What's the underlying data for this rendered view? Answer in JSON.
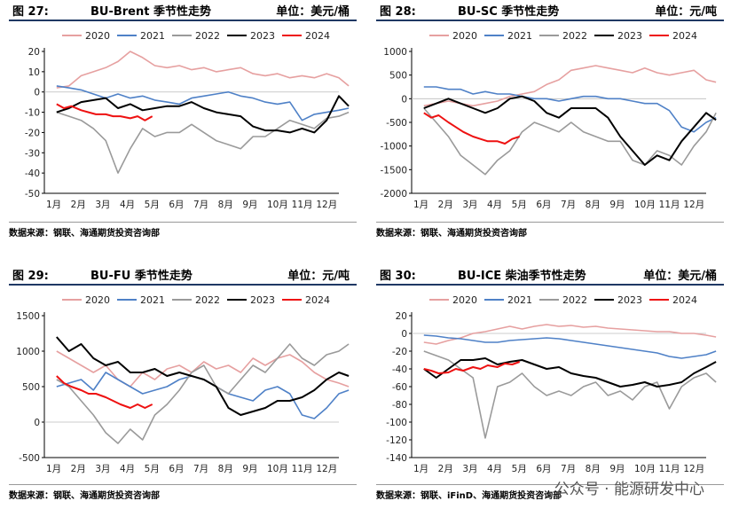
{
  "colors": {
    "2020": "#e6a0a0",
    "2021": "#4f81c7",
    "2022": "#9a9a9a",
    "2023": "#000000",
    "2024": "#ee1111"
  },
  "watermark": "公众号 · 能源研发中心",
  "chart_data": [
    {
      "type": "line",
      "figure": "图 27:",
      "title": "BU-Brent 季节性走势",
      "unit": "单位：美元/桶",
      "source": "数据来源：钢联、海通期货投资咨询部",
      "legend": [
        "2020",
        "2021",
        "2022",
        "2023",
        "2024"
      ],
      "months": [
        "1月",
        "2月",
        "3月",
        "4月",
        "5月",
        "6月",
        "7月",
        "8月",
        "9月",
        "10月",
        "11月",
        "12月"
      ],
      "ylim": [
        -50,
        20
      ],
      "yticks": [
        -50,
        -40,
        -30,
        -20,
        -10,
        0,
        10,
        20
      ],
      "series": [
        {
          "name": "2020",
          "x": [
            0,
            0.5,
            1,
            1.5,
            2,
            2.5,
            3,
            3.5,
            4,
            4.5,
            5,
            5.5,
            6,
            6.5,
            7,
            7.5,
            8,
            8.5,
            9,
            9.5,
            10,
            10.5,
            11,
            11.5,
            11.9
          ],
          "values": [
            2,
            3,
            8,
            10,
            12,
            15,
            20,
            17,
            13,
            12,
            13,
            11,
            12,
            10,
            11,
            12,
            9,
            8,
            9,
            7,
            8,
            7,
            9,
            7,
            3
          ]
        },
        {
          "name": "2021",
          "x": [
            0,
            0.5,
            1,
            1.5,
            2,
            2.5,
            3,
            3.5,
            4,
            4.5,
            5,
            5.5,
            6,
            6.5,
            7,
            7.5,
            8,
            8.5,
            9,
            9.5,
            10,
            10.5,
            11,
            11.5,
            11.9
          ],
          "values": [
            3,
            2,
            1,
            -1,
            -3,
            -1,
            -3,
            -2,
            -4,
            -5,
            -6,
            -3,
            -2,
            -1,
            0,
            -2,
            -3,
            -5,
            -6,
            -5,
            -14,
            -11,
            -10,
            -9,
            -8
          ]
        },
        {
          "name": "2022",
          "x": [
            0,
            0.5,
            1,
            1.5,
            2,
            2.5,
            3,
            3.5,
            4,
            4.5,
            5,
            5.5,
            6,
            6.5,
            7,
            7.5,
            8,
            8.5,
            9,
            9.5,
            10,
            10.5,
            11,
            11.5,
            11.9
          ],
          "values": [
            -10,
            -12,
            -14,
            -18,
            -24,
            -40,
            -28,
            -18,
            -22,
            -20,
            -20,
            -16,
            -20,
            -24,
            -26,
            -28,
            -22,
            -22,
            -18,
            -14,
            -16,
            -18,
            -13,
            -12,
            -10
          ]
        },
        {
          "name": "2023",
          "x": [
            0,
            0.5,
            1,
            1.5,
            2,
            2.5,
            3,
            3.5,
            4,
            4.5,
            5,
            5.5,
            6,
            6.5,
            7,
            7.5,
            8,
            8.5,
            9,
            9.5,
            10,
            10.5,
            11,
            11.5,
            11.9
          ],
          "values": [
            -10,
            -8,
            -5,
            -4,
            -3,
            -8,
            -6,
            -9,
            -8,
            -7,
            -7,
            -5,
            -8,
            -10,
            -11,
            -12,
            -17,
            -19,
            -19,
            -20,
            -18,
            -20,
            -14,
            -2,
            -7
          ]
        },
        {
          "name": "2024",
          "x": [
            0,
            0.3,
            0.6,
            1,
            1.3,
            1.6,
            2,
            2.3,
            2.6,
            3,
            3.3,
            3.6,
            3.9
          ],
          "values": [
            -6,
            -8,
            -7,
            -9,
            -10,
            -11,
            -11,
            -12,
            -12,
            -13,
            -12,
            -14,
            -12
          ]
        }
      ]
    },
    {
      "type": "line",
      "figure": "图 28:",
      "title": "BU-SC 季节性走势",
      "unit": "单位：元/吨",
      "source": "数据来源：钢联、海通期货投资咨询部",
      "legend": [
        "2020",
        "2021",
        "2022",
        "2023",
        "2024"
      ],
      "months": [
        "1月",
        "2月",
        "3月",
        "4月",
        "5月",
        "6月",
        "7月",
        "8月",
        "9月",
        "10月",
        "11月",
        "12月"
      ],
      "ylim": [
        -2000,
        1000
      ],
      "yticks": [
        -2000,
        -1500,
        -1000,
        -500,
        0,
        500,
        1000
      ],
      "series": [
        {
          "name": "2020",
          "x": [
            0,
            0.5,
            1,
            1.5,
            2,
            2.5,
            3,
            3.5,
            4,
            4.5,
            5,
            5.5,
            6,
            6.5,
            7,
            7.5,
            8,
            8.5,
            9,
            9.5,
            10,
            10.5,
            11,
            11.5,
            11.9
          ],
          "values": [
            -150,
            -100,
            -50,
            -100,
            -150,
            -100,
            -50,
            50,
            100,
            150,
            300,
            400,
            600,
            650,
            700,
            650,
            600,
            550,
            650,
            550,
            500,
            550,
            600,
            400,
            350
          ]
        },
        {
          "name": "2021",
          "x": [
            0,
            0.5,
            1,
            1.5,
            2,
            2.5,
            3,
            3.5,
            4,
            4.5,
            5,
            5.5,
            6,
            6.5,
            7,
            7.5,
            8,
            8.5,
            9,
            9.5,
            10,
            10.5,
            11,
            11.5,
            11.9
          ],
          "values": [
            250,
            250,
            200,
            200,
            100,
            150,
            100,
            100,
            50,
            0,
            0,
            -50,
            0,
            50,
            50,
            0,
            0,
            -50,
            -100,
            -100,
            -250,
            -600,
            -700,
            -500,
            -400
          ]
        },
        {
          "name": "2022",
          "x": [
            0,
            0.5,
            1,
            1.5,
            2,
            2.5,
            3,
            3.5,
            4,
            4.5,
            5,
            5.5,
            6,
            6.5,
            7,
            7.5,
            8,
            8.5,
            9,
            9.5,
            10,
            10.5,
            11,
            11.5,
            11.9
          ],
          "values": [
            -200,
            -500,
            -800,
            -1200,
            -1400,
            -1600,
            -1300,
            -1100,
            -700,
            -500,
            -600,
            -700,
            -500,
            -700,
            -800,
            -900,
            -900,
            -1300,
            -1400,
            -1100,
            -1200,
            -1400,
            -1000,
            -700,
            -300
          ]
        },
        {
          "name": "2023",
          "x": [
            0,
            0.5,
            1,
            1.5,
            2,
            2.5,
            3,
            3.5,
            4,
            4.5,
            5,
            5.5,
            6,
            6.5,
            7,
            7.5,
            8,
            8.5,
            9,
            9.5,
            10,
            10.5,
            11,
            11.5,
            11.9
          ],
          "values": [
            -200,
            -100,
            0,
            -100,
            -200,
            -300,
            -200,
            0,
            50,
            -50,
            -300,
            -400,
            -200,
            -200,
            -200,
            -400,
            -800,
            -1100,
            -1400,
            -1200,
            -1300,
            -900,
            -600,
            -300,
            -450
          ]
        },
        {
          "name": "2024",
          "x": [
            0,
            0.3,
            0.6,
            1,
            1.3,
            1.6,
            2,
            2.3,
            2.6,
            3,
            3.3,
            3.6,
            3.9
          ],
          "values": [
            -300,
            -400,
            -350,
            -500,
            -600,
            -700,
            -800,
            -850,
            -900,
            -900,
            -950,
            -850,
            -800
          ]
        }
      ]
    },
    {
      "type": "line",
      "figure": "图 29:",
      "title": "BU-FU 季节性走势",
      "unit": "单位：元/吨",
      "source": "数据来源：钢联、海通期货投资咨询部",
      "legend": [
        "2020",
        "2021",
        "2022",
        "2023",
        "2024"
      ],
      "months": [
        "1月",
        "2月",
        "3月",
        "4月",
        "5月",
        "6月",
        "7月",
        "8月",
        "9月",
        "10月",
        "11月",
        "12月"
      ],
      "ylim": [
        -500,
        1500
      ],
      "yticks": [
        -500,
        0,
        500,
        1000,
        1500
      ],
      "series": [
        {
          "name": "2020",
          "x": [
            0,
            0.5,
            1,
            1.5,
            2,
            2.5,
            3,
            3.5,
            4,
            4.5,
            5,
            5.5,
            6,
            6.5,
            7,
            7.5,
            8,
            8.5,
            9,
            9.5,
            10,
            10.5,
            11,
            11.5,
            11.9
          ],
          "values": [
            1000,
            900,
            800,
            700,
            800,
            600,
            500,
            700,
            600,
            750,
            800,
            700,
            850,
            750,
            800,
            700,
            900,
            800,
            900,
            950,
            850,
            700,
            600,
            550,
            500
          ]
        },
        {
          "name": "2021",
          "x": [
            0,
            0.5,
            1,
            1.5,
            2,
            2.5,
            3,
            3.5,
            4,
            4.5,
            5,
            5.5,
            6,
            6.5,
            7,
            7.5,
            8,
            8.5,
            9,
            9.5,
            10,
            10.5,
            11,
            11.5,
            11.9
          ],
          "values": [
            500,
            550,
            600,
            450,
            700,
            600,
            500,
            400,
            450,
            500,
            600,
            650,
            600,
            500,
            400,
            350,
            300,
            450,
            500,
            400,
            100,
            50,
            200,
            400,
            450
          ]
        },
        {
          "name": "2022",
          "x": [
            0,
            0.5,
            1,
            1.5,
            2,
            2.5,
            3,
            3.5,
            4,
            4.5,
            5,
            5.5,
            6,
            6.5,
            7,
            7.5,
            8,
            8.5,
            9,
            9.5,
            10,
            10.5,
            11,
            11.5,
            11.9
          ],
          "values": [
            600,
            500,
            300,
            100,
            -150,
            -300,
            -100,
            -250,
            100,
            250,
            450,
            700,
            800,
            500,
            400,
            600,
            800,
            700,
            900,
            1100,
            900,
            800,
            950,
            1000,
            1100
          ]
        },
        {
          "name": "2023",
          "x": [
            0,
            0.5,
            1,
            1.5,
            2,
            2.5,
            3,
            3.5,
            4,
            4.5,
            5,
            5.5,
            6,
            6.5,
            7,
            7.5,
            8,
            8.5,
            9,
            9.5,
            10,
            10.5,
            11,
            11.5,
            11.9
          ],
          "values": [
            1200,
            1000,
            1100,
            900,
            800,
            850,
            700,
            700,
            750,
            650,
            700,
            650,
            600,
            500,
            200,
            100,
            150,
            200,
            300,
            300,
            350,
            450,
            600,
            700,
            650
          ]
        },
        {
          "name": "2024",
          "x": [
            0,
            0.3,
            0.6,
            1,
            1.3,
            1.6,
            2,
            2.3,
            2.6,
            3,
            3.3,
            3.6,
            3.9
          ],
          "values": [
            650,
            550,
            500,
            450,
            400,
            400,
            350,
            300,
            250,
            200,
            250,
            200,
            250
          ]
        }
      ]
    },
    {
      "type": "line",
      "figure": "图 30:",
      "title": "BU-ICE 柴油季节性走势",
      "unit": "单位：美元/桶",
      "source": "数据来源：钢联、iFinD、海通期货投资咨询部",
      "legend": [
        "2020",
        "2021",
        "2022",
        "2023",
        "2024"
      ],
      "months": [
        "1月",
        "2月",
        "3月",
        "4月",
        "5月",
        "6月",
        "7月",
        "8月",
        "9月",
        "10月",
        "11月",
        "12月"
      ],
      "ylim": [
        -140,
        20
      ],
      "yticks": [
        -140,
        -120,
        -100,
        -80,
        -60,
        -40,
        -20,
        0,
        20
      ],
      "series": [
        {
          "name": "2020",
          "x": [
            0,
            0.5,
            1,
            1.5,
            2,
            2.5,
            3,
            3.5,
            4,
            4.5,
            5,
            5.5,
            6,
            6.5,
            7,
            7.5,
            8,
            8.5,
            9,
            9.5,
            10,
            10.5,
            11,
            11.5,
            11.9
          ],
          "values": [
            -10,
            -12,
            -8,
            -5,
            0,
            2,
            5,
            8,
            5,
            8,
            10,
            8,
            9,
            7,
            8,
            6,
            5,
            4,
            3,
            2,
            2,
            0,
            0,
            -2,
            -4
          ]
        },
        {
          "name": "2021",
          "x": [
            0,
            0.5,
            1,
            1.5,
            2,
            2.5,
            3,
            3.5,
            4,
            4.5,
            5,
            5.5,
            6,
            6.5,
            7,
            7.5,
            8,
            8.5,
            9,
            9.5,
            10,
            10.5,
            11,
            11.5,
            11.9
          ],
          "values": [
            -2,
            -3,
            -5,
            -6,
            -8,
            -10,
            -10,
            -8,
            -7,
            -6,
            -5,
            -6,
            -8,
            -10,
            -12,
            -14,
            -16,
            -18,
            -20,
            -22,
            -26,
            -28,
            -26,
            -24,
            -20
          ]
        },
        {
          "name": "2022",
          "x": [
            0,
            0.5,
            1,
            1.5,
            2,
            2.5,
            3,
            3.5,
            4,
            4.5,
            5,
            5.5,
            6,
            6.5,
            7,
            7.5,
            8,
            8.5,
            9,
            9.5,
            10,
            10.5,
            11,
            11.5,
            11.9
          ],
          "values": [
            -20,
            -25,
            -30,
            -40,
            -50,
            -118,
            -60,
            -55,
            -45,
            -60,
            -70,
            -65,
            -70,
            -60,
            -55,
            -70,
            -65,
            -75,
            -60,
            -55,
            -85,
            -60,
            -50,
            -45,
            -55
          ]
        },
        {
          "name": "2023",
          "x": [
            0,
            0.5,
            1,
            1.5,
            2,
            2.5,
            3,
            3.5,
            4,
            4.5,
            5,
            5.5,
            6,
            6.5,
            7,
            7.5,
            8,
            8.5,
            9,
            9.5,
            10,
            10.5,
            11,
            11.5,
            11.9
          ],
          "values": [
            -40,
            -50,
            -40,
            -30,
            -30,
            -28,
            -35,
            -32,
            -30,
            -35,
            -40,
            -38,
            -45,
            -48,
            -50,
            -55,
            -60,
            -58,
            -55,
            -60,
            -58,
            -55,
            -45,
            -38,
            -32
          ]
        },
        {
          "name": "2024",
          "x": [
            0,
            0.3,
            0.6,
            1,
            1.3,
            1.6,
            2,
            2.3,
            2.6,
            3,
            3.3,
            3.6,
            3.9
          ],
          "values": [
            -40,
            -42,
            -45,
            -44,
            -40,
            -42,
            -38,
            -40,
            -36,
            -38,
            -34,
            -35,
            -32
          ]
        }
      ]
    }
  ]
}
